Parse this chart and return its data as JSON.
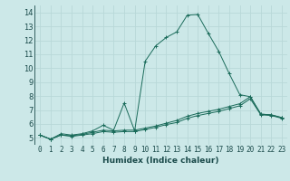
{
  "xlabel": "Humidex (Indice chaleur)",
  "background_color": "#cce8e8",
  "grid_color": "#b8d8d8",
  "line_color": "#1a6b5a",
  "xlim": [
    -0.5,
    23.5
  ],
  "ylim": [
    4.5,
    14.5
  ],
  "xticks": [
    0,
    1,
    2,
    3,
    4,
    5,
    6,
    7,
    8,
    9,
    10,
    11,
    12,
    13,
    14,
    15,
    16,
    17,
    18,
    19,
    20,
    21,
    22,
    23
  ],
  "yticks": [
    5,
    6,
    7,
    8,
    9,
    10,
    11,
    12,
    13,
    14
  ],
  "series1_x": [
    0,
    1,
    2,
    3,
    4,
    5,
    6,
    7,
    8,
    9,
    10,
    11,
    12,
    13,
    14,
    15,
    16,
    17,
    18,
    19,
    20,
    21,
    22,
    23
  ],
  "series1_y": [
    5.2,
    4.9,
    5.3,
    5.2,
    5.3,
    5.5,
    5.9,
    5.55,
    7.5,
    5.5,
    10.5,
    11.6,
    12.2,
    12.6,
    13.8,
    13.85,
    12.5,
    11.2,
    9.6,
    8.1,
    7.95,
    6.7,
    6.65,
    6.45
  ],
  "series2_x": [
    0,
    1,
    2,
    3,
    4,
    5,
    6,
    7,
    8,
    9,
    10,
    11,
    12,
    13,
    14,
    15,
    16,
    17,
    18,
    19,
    20,
    21,
    22,
    23
  ],
  "series2_y": [
    5.2,
    4.9,
    5.2,
    5.15,
    5.25,
    5.4,
    5.55,
    5.5,
    5.55,
    5.55,
    5.7,
    5.85,
    6.05,
    6.25,
    6.55,
    6.75,
    6.9,
    7.05,
    7.25,
    7.45,
    7.95,
    6.7,
    6.65,
    6.45
  ],
  "series3_x": [
    0,
    1,
    2,
    3,
    4,
    5,
    6,
    7,
    8,
    9,
    10,
    11,
    12,
    13,
    14,
    15,
    16,
    17,
    18,
    19,
    20,
    21,
    22,
    23
  ],
  "series3_y": [
    5.2,
    4.9,
    5.2,
    5.1,
    5.2,
    5.3,
    5.45,
    5.4,
    5.45,
    5.45,
    5.6,
    5.75,
    5.95,
    6.1,
    6.4,
    6.6,
    6.75,
    6.9,
    7.1,
    7.3,
    7.8,
    6.65,
    6.6,
    6.4
  ],
  "tick_fontsize": 5.5,
  "xlabel_fontsize": 6.5,
  "marker_size": 2.5,
  "line_width": 0.7
}
